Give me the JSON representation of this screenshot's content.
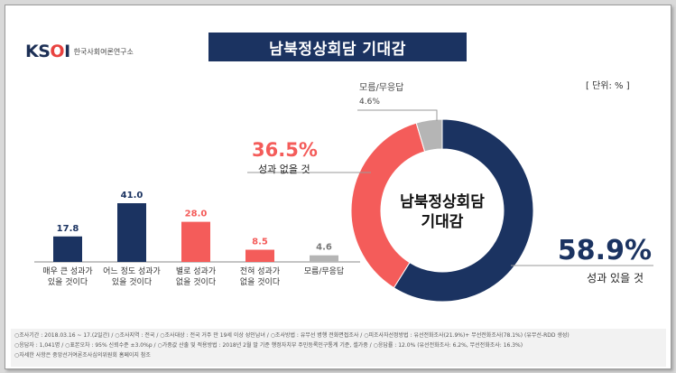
{
  "logo": {
    "mark_main": "KS",
    "mark_accent": "O",
    "mark_tail": "I",
    "text": "한국사회여론연구소"
  },
  "title": "남북정상회담 기대감",
  "unit": "[ 단위: % ]",
  "colors": {
    "navy": "#1b3361",
    "red": "#f45c5a",
    "gray": "#b5b5b5"
  },
  "chart_data": [
    {
      "type": "bar",
      "categories": [
        "매우 큰 성과가\n있을 것이다",
        "어느 정도 성과가\n있을 것이다",
        "별로 성과가\n없을 것이다",
        "전혀 성과가\n없을 것이다",
        "모름/무응답"
      ],
      "values": [
        17.8,
        41.0,
        28.0,
        8.5,
        4.6
      ],
      "value_labels": [
        "17.8",
        "41.0",
        "28.0",
        "8.5",
        "4.6"
      ],
      "bar_colors": [
        "#1b3361",
        "#1b3361",
        "#f45c5a",
        "#f45c5a",
        "#b5b5b5"
      ],
      "ylim": [
        0,
        45
      ]
    },
    {
      "type": "pie",
      "donut": true,
      "center_label": [
        "남북정상회담",
        "기대감"
      ],
      "slices": [
        {
          "label": "성과 있을 것",
          "value": 58.9,
          "value_label": "58.9%",
          "color": "#1b3361"
        },
        {
          "label": "성과 없을 것",
          "value": 36.5,
          "value_label": "36.5%",
          "color": "#f45c5a"
        },
        {
          "label": "모름/무응답",
          "value": 4.6,
          "value_label": "4.6%",
          "color": "#b5b5b5"
        }
      ]
    }
  ],
  "footer": {
    "lines": [
      "○조사기간 : 2018.03.16 ~ 17.(2일간) / ○조사지역 : 전국 / ○조사대상 : 전국 거주 만 19세 이상 성인남녀 / ○조사방법 : 유무선 병행 전화면접조사 / ○피조사자선정방법 : 유선전화조사(21.9%)+ 무선전화조사(78.1%) (유무선-RDD 생성)",
      "○응답자 : 1,041명 / ○표본오차 : 95% 신뢰수준 ±3.0%p / ○가중값 산출 및 적용방법 : 2018년 2월 말 기준 행정자치부 주민등록인구통계 기준, 셀가중 / ○응답률 : 12.0% (유선전화조사: 6.2%, 무선전화조사: 16.3%)",
      "○자세한 사항은 중앙선거여론조사심의위원회 홈페이지 참조"
    ]
  }
}
